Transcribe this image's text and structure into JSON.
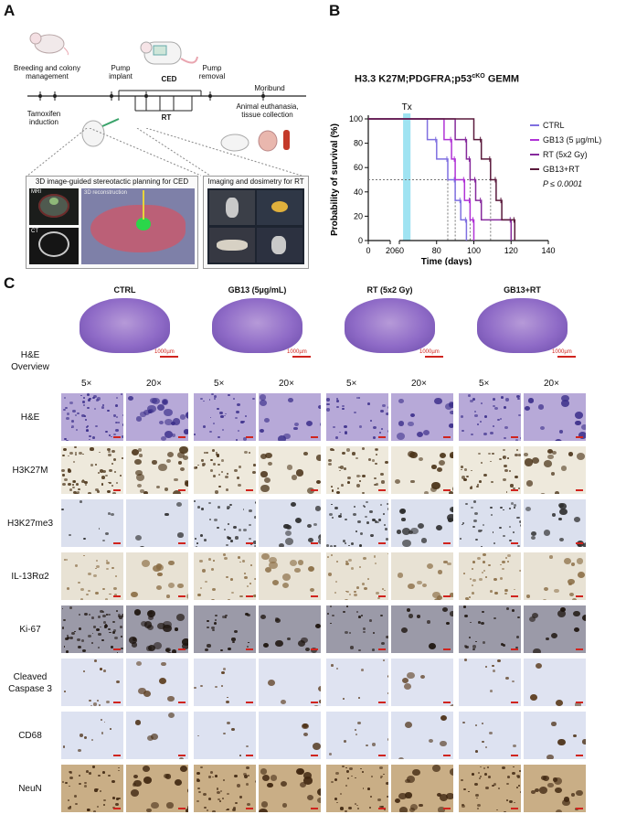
{
  "panels": {
    "a": "A",
    "b": "B",
    "c": "C"
  },
  "panel_a": {
    "breeding": "Breeding and colony management",
    "tamoxifen": "Tamoxifen induction",
    "pump_implant": "Pump implant",
    "ced": "CED",
    "pump_removal": "Pump removal",
    "rt": "RT",
    "moribund": "Moribund",
    "euthanasia": "Animal euthanasia, tissue collection",
    "box1_title": "3D image-guided stereotactic planning for CED",
    "box2_title": "Imaging and dosimetry for RT",
    "mri": "MRI",
    "ct": "CT",
    "recon": "3D reconstruction"
  },
  "panel_b": {
    "title_main": "H3.3 K27M;PDGFRA;p53",
    "title_sup": "cKO",
    "title_end": " GEMM",
    "tx_label": "Tx",
    "pvalue": "P ≤ 0.0001"
  },
  "chart_data": {
    "type": "line",
    "subtype": "kaplan-meier-step",
    "xlabel": "Time (days)",
    "ylabel": "Probability of survival (%)",
    "xlim": [
      0,
      140
    ],
    "ylim": [
      0,
      100
    ],
    "x_ticks": [
      0,
      20,
      60,
      80,
      100,
      120,
      140
    ],
    "y_ticks": [
      0,
      20,
      40,
      60,
      80,
      100
    ],
    "axis_break": [
      20,
      60
    ],
    "treatment_window": [
      62,
      66
    ],
    "median_reference_y": 50,
    "legend_position": "right",
    "series": [
      {
        "name": "CTRL",
        "color": "#7f6fe0",
        "points": [
          [
            0,
            100
          ],
          [
            75,
            100
          ],
          [
            75,
            83
          ],
          [
            80,
            83
          ],
          [
            80,
            67
          ],
          [
            86,
            67
          ],
          [
            86,
            50
          ],
          [
            90,
            50
          ],
          [
            90,
            33
          ],
          [
            93,
            33
          ],
          [
            93,
            17
          ],
          [
            96,
            17
          ],
          [
            96,
            0
          ]
        ]
      },
      {
        "name": "GB13 (5 µg/mL)",
        "color": "#b033d6",
        "points": [
          [
            0,
            100
          ],
          [
            84,
            100
          ],
          [
            84,
            83
          ],
          [
            88,
            83
          ],
          [
            88,
            67
          ],
          [
            90,
            67
          ],
          [
            90,
            50
          ],
          [
            95,
            50
          ],
          [
            95,
            33
          ],
          [
            98,
            33
          ],
          [
            98,
            17
          ],
          [
            100,
            17
          ],
          [
            100,
            0
          ]
        ]
      },
      {
        "name": "RT (5x2 Gy)",
        "color": "#862a9c",
        "points": [
          [
            0,
            100
          ],
          [
            90,
            100
          ],
          [
            90,
            83
          ],
          [
            96,
            83
          ],
          [
            96,
            67
          ],
          [
            98,
            67
          ],
          [
            98,
            50
          ],
          [
            101,
            50
          ],
          [
            101,
            33
          ],
          [
            104,
            33
          ],
          [
            104,
            17
          ],
          [
            120,
            17
          ],
          [
            120,
            0
          ]
        ]
      },
      {
        "name": "GB13+RT",
        "color": "#5a1a3c",
        "points": [
          [
            0,
            100
          ],
          [
            100,
            100
          ],
          [
            100,
            83
          ],
          [
            104,
            83
          ],
          [
            104,
            67
          ],
          [
            109,
            67
          ],
          [
            109,
            50
          ],
          [
            112,
            50
          ],
          [
            112,
            33
          ],
          [
            115,
            33
          ],
          [
            115,
            17
          ],
          [
            122,
            17
          ],
          [
            122,
            0
          ]
        ]
      }
    ]
  },
  "panel_c": {
    "columns": [
      "CTRL",
      "GB13 (5µg/mL)",
      "RT (5x2 Gy)",
      "GB13+RT"
    ],
    "overview_label": "H&E Overview",
    "scalebar_label": "1000µm",
    "mag_low": "5×",
    "mag_high": "20×",
    "rows": [
      {
        "label": "H&E",
        "bg": "#b7a9d8",
        "dot": "#3b2f8a",
        "dense": [
          0.9,
          0.45,
          0.45,
          0.45
        ]
      },
      {
        "label": "H3K27M",
        "bg": "#eee9dc",
        "dot": "#4a3318",
        "dense": [
          0.95,
          0.5,
          0.6,
          0.55
        ]
      },
      {
        "label": "H3K27me3",
        "bg": "#dbe0ee",
        "dot": "#2c2c2c",
        "dense": [
          0.1,
          0.55,
          0.6,
          0.5
        ]
      },
      {
        "label": "IL-13Rα2",
        "bg": "#e8e2d4",
        "dot": "#8a6d45",
        "dense": [
          0.4,
          0.4,
          0.45,
          0.5
        ]
      },
      {
        "label": "Ki-67",
        "bg": "#9b9aa8",
        "dot": "#1d140e",
        "dense": [
          0.95,
          0.35,
          0.3,
          0.3
        ]
      },
      {
        "label": "Cleaved Caspase 3",
        "bg": "#dfe3f1",
        "dot": "#5a3a1c",
        "dense": [
          0.15,
          0.08,
          0.08,
          0.1
        ]
      },
      {
        "label": "CD68",
        "bg": "#dde2f1",
        "dot": "#4d3218",
        "dense": [
          0.1,
          0.05,
          0.08,
          0.08
        ]
      },
      {
        "label": "NeuN",
        "bg": "#c9ae86",
        "dot": "#3f2610",
        "dense": [
          0.6,
          0.6,
          0.6,
          0.6
        ]
      }
    ]
  }
}
